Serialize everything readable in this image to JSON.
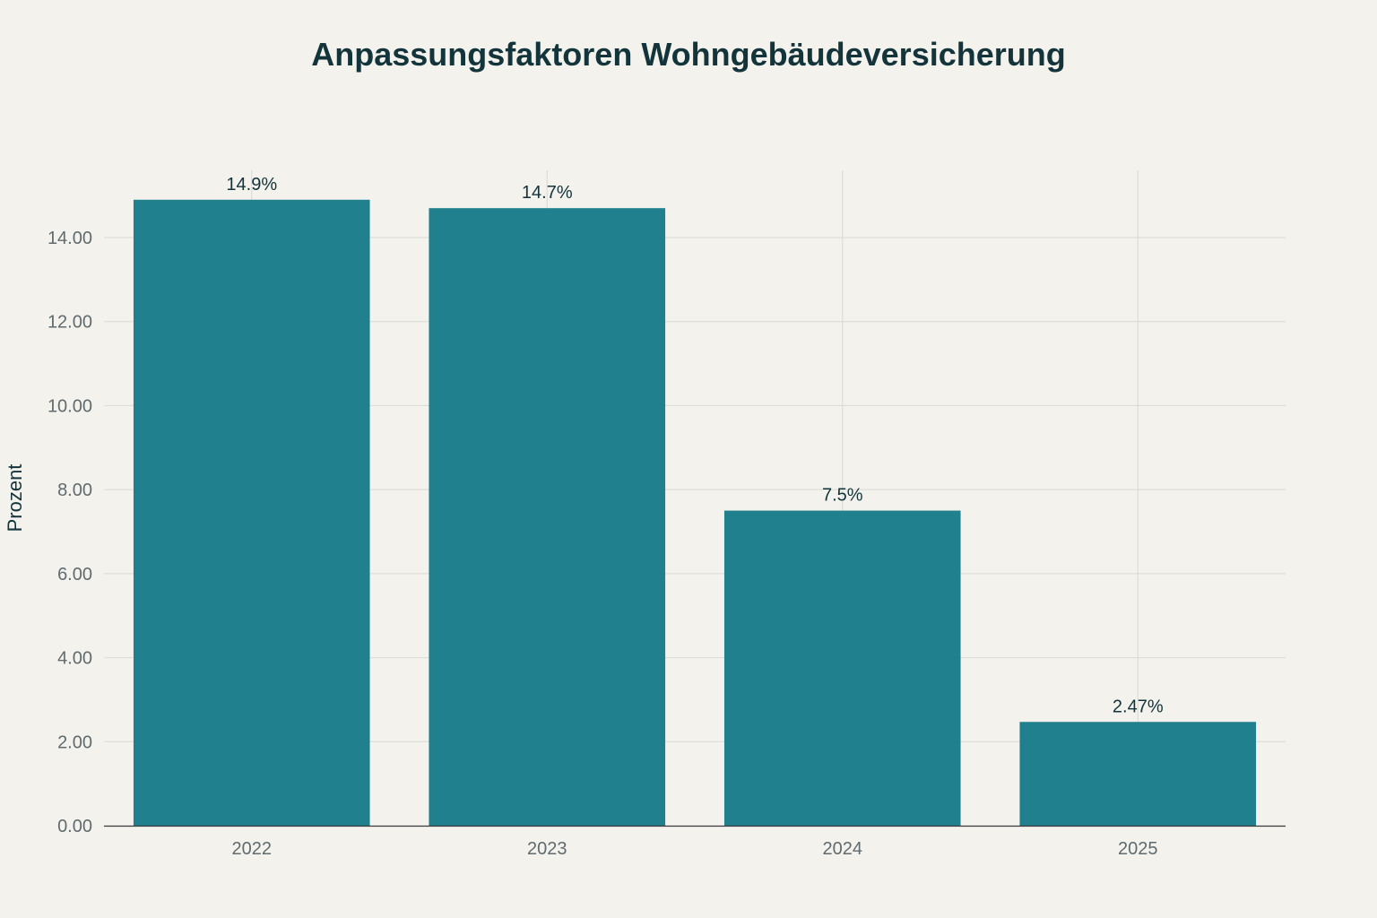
{
  "chart_data": {
    "type": "bar",
    "title": "Anpassungsfaktoren Wohngebäudeversicherung",
    "xlabel": "",
    "ylabel": "Prozent",
    "categories": [
      "2022",
      "2023",
      "2024",
      "2025"
    ],
    "values": [
      14.9,
      14.7,
      7.5,
      2.47
    ],
    "data_labels": [
      "14.9%",
      "14.7%",
      "7.5%",
      "2.47%"
    ],
    "ylim": [
      0,
      15.6
    ],
    "yticks": [
      0,
      2,
      4,
      6,
      8,
      10,
      12,
      14
    ],
    "ytick_labels": [
      "0.00",
      "2.00",
      "4.00",
      "6.00",
      "8.00",
      "10.00",
      "12.00",
      "14.00"
    ],
    "grid": true,
    "legend": "none",
    "colors": {
      "bar": "#21808D",
      "background": "#F3F2ED",
      "grid": "#D9D9D4",
      "text": "#13343B",
      "tick_text": "#5F6B6E"
    }
  }
}
